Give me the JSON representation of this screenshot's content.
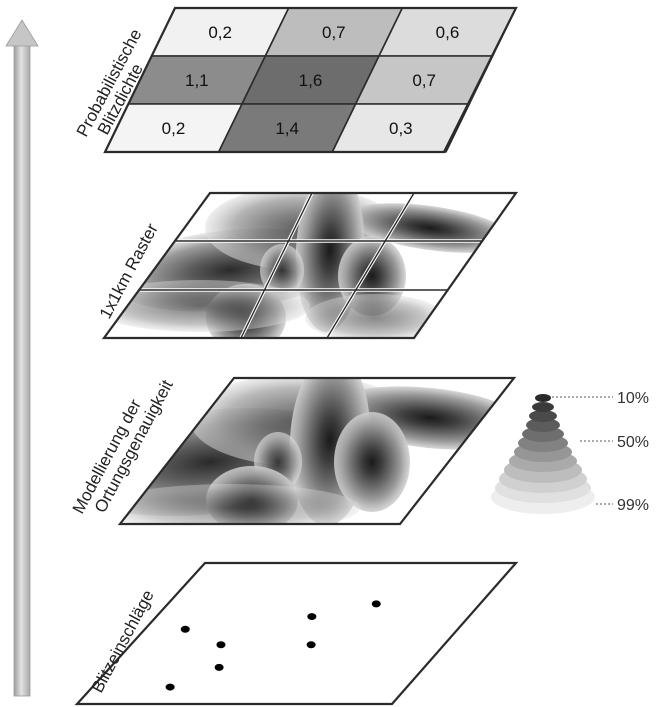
{
  "layers": {
    "density": {
      "label_line1": "Probabilistische",
      "label_line2": "Blitzdichte",
      "cells": [
        {
          "value": "0,2",
          "fill": "#f1f1f1"
        },
        {
          "value": "0,7",
          "fill": "#bdbdbd"
        },
        {
          "value": "0,6",
          "fill": "#dcdcdc"
        },
        {
          "value": "1,1",
          "fill": "#8c8c8c"
        },
        {
          "value": "1,6",
          "fill": "#6d6d6d"
        },
        {
          "value": "0,7",
          "fill": "#c6c6c6"
        },
        {
          "value": "0,2",
          "fill": "#f4f4f4"
        },
        {
          "value": "1,4",
          "fill": "#7a7a7a"
        },
        {
          "value": "0,3",
          "fill": "#e7e7e7"
        }
      ]
    },
    "raster": {
      "label": "1x1km Raster"
    },
    "modelling": {
      "label_line1": "Modellierung der",
      "label_line2": "Ortungsgenauigkeit",
      "legend": [
        {
          "label": "10%"
        },
        {
          "label": "50%"
        },
        {
          "label": "99%"
        }
      ]
    },
    "strikes": {
      "label": "Blitzeinschläge",
      "points": [
        {
          "u": 0.13,
          "v": 0.47
        },
        {
          "u": 0.29,
          "v": 0.58
        },
        {
          "u": 0.35,
          "v": 0.74
        },
        {
          "u": 0.25,
          "v": 0.88
        },
        {
          "u": 0.5,
          "v": 0.38
        },
        {
          "u": 0.58,
          "v": 0.58
        },
        {
          "u": 0.67,
          "v": 0.29
        }
      ]
    }
  },
  "colors": {
    "frame": "#2b2b2b",
    "arrow": "#bcbcbc",
    "dot": "#000000"
  }
}
